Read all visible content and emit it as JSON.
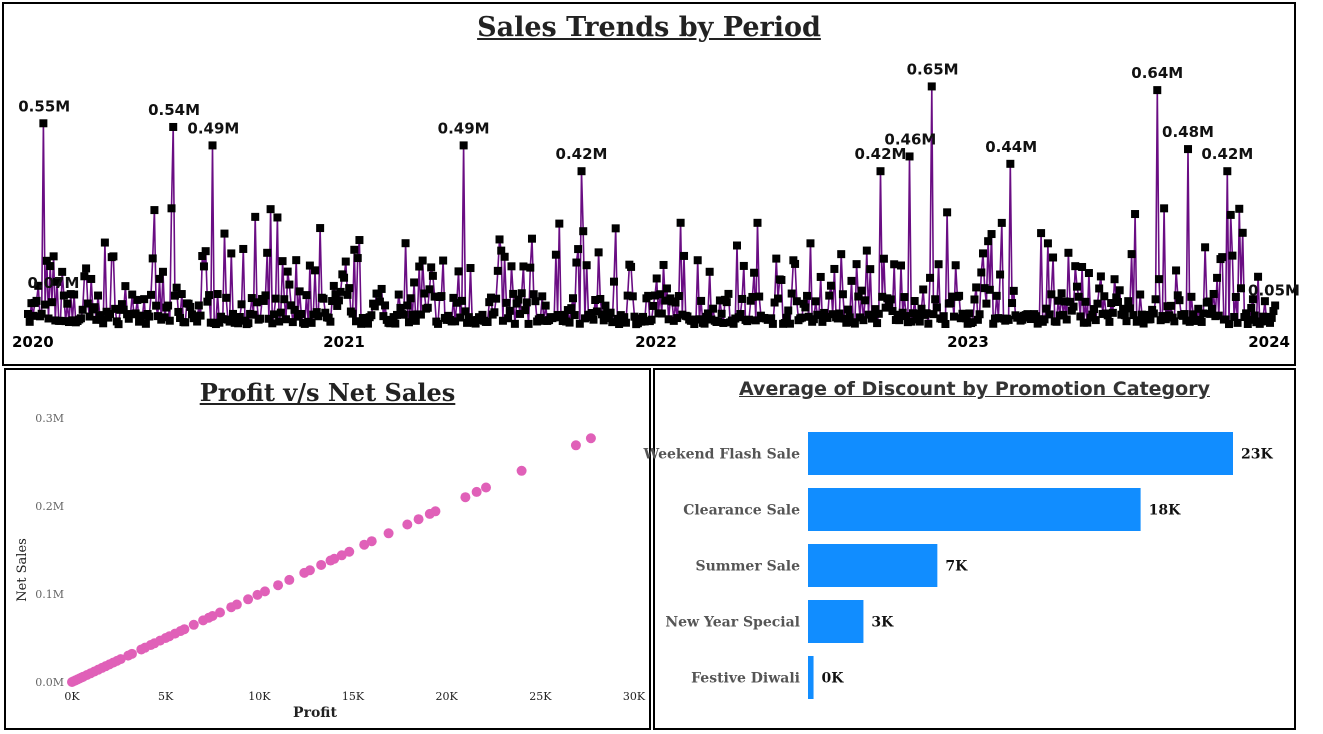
{
  "charts": {
    "trend": {
      "title": "Sales Trends by Period"
    },
    "scatter": {
      "title": "Profit v/s Net Sales"
    },
    "bars": {
      "title": "Average of Discount by Promotion Category"
    }
  },
  "colors": {
    "line": "#6a0d83",
    "marker": "#000000",
    "scatter": "#e060b8",
    "bar": "#118dff"
  },
  "chart_data": [
    {
      "id": "trend",
      "type": "line",
      "title": "Sales Trends by Period",
      "x_tick_labels": [
        "2020",
        "2021",
        "2022",
        "2023",
        "2024"
      ],
      "xlim": [
        "2020-01-01",
        "2024-01-01"
      ],
      "ylim": [
        0,
        0.7
      ],
      "y_unit": "M",
      "grid": false,
      "labeled_peaks": [
        {
          "date": "2020-01-20",
          "value": 0.55,
          "label": "0.55M"
        },
        {
          "date": "2020-06-20",
          "value": 0.54,
          "label": "0.54M"
        },
        {
          "date": "2020-08-05",
          "value": 0.49,
          "label": "0.49M"
        },
        {
          "date": "2021-05-25",
          "value": 0.49,
          "label": "0.49M"
        },
        {
          "date": "2021-10-10",
          "value": 0.42,
          "label": "0.42M"
        },
        {
          "date": "2022-09-25",
          "value": 0.42,
          "label": "0.42M"
        },
        {
          "date": "2022-10-30",
          "value": 0.46,
          "label": "0.46M"
        },
        {
          "date": "2022-11-25",
          "value": 0.65,
          "label": "0.65M"
        },
        {
          "date": "2023-02-25",
          "value": 0.44,
          "label": "0.44M"
        },
        {
          "date": "2023-08-15",
          "value": 0.64,
          "label": "0.64M"
        },
        {
          "date": "2023-09-20",
          "value": 0.48,
          "label": "0.48M"
        },
        {
          "date": "2023-11-05",
          "value": 0.42,
          "label": "0.42M"
        }
      ],
      "end_labels": [
        {
          "date": "2020-01-05",
          "value": 0.07,
          "label": "0.07M"
        },
        {
          "date": "2023-12-25",
          "value": 0.05,
          "label": "0.05M"
        }
      ]
    },
    {
      "id": "scatter",
      "type": "scatter",
      "title": "Profit v/s Net Sales",
      "xlabel": "Profit",
      "ylabel": "Net Sales",
      "xlim": [
        0,
        30000
      ],
      "ylim": [
        0,
        300000
      ],
      "x_tick_labels": [
        "0K",
        "5K",
        "10K",
        "15K",
        "20K",
        "25K",
        "30K"
      ],
      "y_tick_labels": [
        "0.0M",
        "0.1M",
        "0.2M",
        "0.3M"
      ],
      "points": [
        [
          27700,
          277000
        ],
        [
          26900,
          269000
        ],
        [
          24000,
          240000
        ],
        [
          22100,
          221000
        ],
        [
          21600,
          216000
        ],
        [
          21000,
          210000
        ],
        [
          19400,
          194000
        ],
        [
          19100,
          191000
        ],
        [
          18500,
          185000
        ],
        [
          17900,
          179000
        ],
        [
          16900,
          169000
        ],
        [
          16000,
          160000
        ],
        [
          15600,
          156000
        ],
        [
          14800,
          148000
        ],
        [
          14400,
          144000
        ],
        [
          14000,
          140000
        ],
        [
          13800,
          138000
        ],
        [
          13300,
          133000
        ],
        [
          12700,
          127000
        ],
        [
          12400,
          124000
        ],
        [
          11600,
          116000
        ],
        [
          11000,
          110000
        ],
        [
          10300,
          103000
        ],
        [
          9900,
          99000
        ],
        [
          9400,
          94000
        ],
        [
          8800,
          88000
        ],
        [
          8500,
          85000
        ],
        [
          7900,
          79000
        ],
        [
          7500,
          75000
        ],
        [
          7300,
          73000
        ],
        [
          7000,
          70000
        ],
        [
          6500,
          65000
        ],
        [
          6000,
          60000
        ],
        [
          5800,
          58000
        ],
        [
          5500,
          55000
        ],
        [
          5200,
          52000
        ],
        [
          5000,
          50000
        ],
        [
          4700,
          47000
        ],
        [
          4400,
          44000
        ],
        [
          4200,
          42000
        ],
        [
          3900,
          39000
        ],
        [
          3700,
          37000
        ],
        [
          3200,
          32000
        ],
        [
          3000,
          30000
        ],
        [
          2600,
          26000
        ],
        [
          2400,
          24000
        ],
        [
          2200,
          22000
        ],
        [
          2000,
          20000
        ],
        [
          1800,
          18000
        ],
        [
          1600,
          16000
        ],
        [
          1400,
          14000
        ],
        [
          1200,
          12000
        ],
        [
          1000,
          10000
        ],
        [
          800,
          8000
        ],
        [
          600,
          6000
        ],
        [
          500,
          5000
        ],
        [
          400,
          4000
        ],
        [
          300,
          3000
        ],
        [
          200,
          2000
        ],
        [
          100,
          1000
        ],
        [
          0,
          0
        ]
      ]
    },
    {
      "id": "bars",
      "type": "bar",
      "orientation": "horizontal",
      "title": "Average of Discount by Promotion Category",
      "categories": [
        "Weekend Flash Sale",
        "Clearance Sale",
        "Summer Sale",
        "New Year Special",
        "Festive Diwali"
      ],
      "values": [
        23000,
        18000,
        7000,
        3000,
        300
      ],
      "value_labels": [
        "23K",
        "18K",
        "7K",
        "3K",
        "0K"
      ],
      "xlim": [
        0,
        23000
      ]
    }
  ]
}
